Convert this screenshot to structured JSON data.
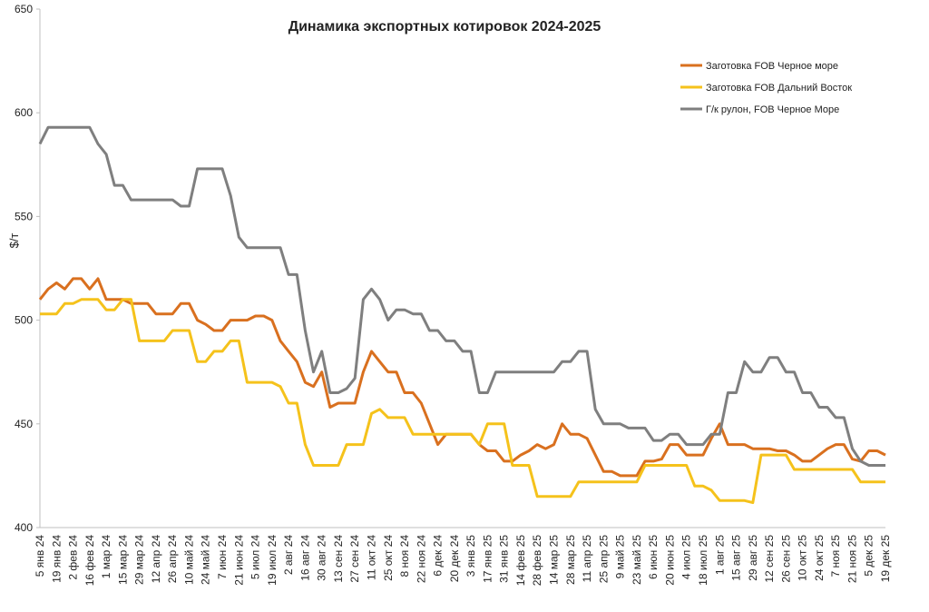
{
  "chart_data": {
    "type": "line",
    "title": "Динамика экспортных котировок 2024-2025",
    "y_label": "$/т",
    "categories": [
      "5 янв 24",
      null,
      "19 янв 24",
      null,
      "2 фев 24",
      null,
      "16 фев 24",
      null,
      "1 мар 24",
      null,
      "15 мар 24",
      null,
      "29 мар 24",
      null,
      "12 апр 24",
      null,
      "26 апр 24",
      null,
      "10 май 24",
      null,
      "24 май 24",
      null,
      "7 июн 24",
      null,
      "21 июн 24",
      null,
      "5 июл 24",
      null,
      "19 июл 24",
      null,
      "2 авг 24",
      null,
      "16 авг 24",
      null,
      "30 авг 24",
      null,
      "13 сен 24",
      null,
      "27 сен 24",
      null,
      "11 окт 24",
      null,
      "25 окт 24",
      null,
      "8 ноя 24",
      null,
      "22 ноя 24",
      null,
      "6 дек 24",
      null,
      "20 дек 24",
      null,
      "3 янв 25",
      null,
      "17 янв 25",
      null,
      "31 янв 25",
      null,
      "14 фев 25",
      null,
      "28 фев 25",
      null,
      "14 мар 25",
      null,
      "28 мар 25",
      null,
      "11 апр 25",
      null,
      "25 апр 25",
      null,
      "9 май 25",
      null,
      "23 май 25",
      null,
      "6 июн 25",
      null,
      "20 июн 25",
      null,
      "4 июл 25",
      null,
      "18 июл 25",
      null,
      "1 авг 25",
      null,
      "15 авг 25",
      null,
      "29 авг 25",
      null,
      "12 сен 25",
      null,
      "26 сен 25",
      null,
      "10 окт 25",
      null,
      "24 окт 25",
      null,
      "7 ноя 25",
      null,
      "21 ноя 25",
      null,
      "5 дек 25",
      null,
      "19 дек 25"
    ],
    "series": [
      {
        "name": "Заготовка FOB Черное море",
        "color": "#d9701f",
        "values": [
          510,
          515,
          518,
          515,
          520,
          520,
          515,
          520,
          510,
          510,
          510,
          508,
          508,
          508,
          503,
          503,
          503,
          508,
          508,
          500,
          498,
          495,
          495,
          500,
          500,
          500,
          502,
          502,
          500,
          490,
          485,
          480,
          470,
          468,
          475,
          458,
          460,
          460,
          460,
          475,
          485,
          480,
          475,
          475,
          465,
          465,
          460,
          450,
          440,
          445,
          445,
          445,
          445,
          440,
          437,
          437,
          432,
          432,
          435,
          437,
          440,
          438,
          440,
          450,
          445,
          445,
          443,
          435,
          427,
          427,
          425,
          425,
          425,
          432,
          432,
          433,
          440,
          440,
          435,
          435,
          435,
          443,
          450,
          440,
          440,
          440,
          438,
          438,
          438,
          437,
          437,
          435,
          432,
          432,
          435,
          438,
          440,
          440,
          433,
          432,
          437,
          437,
          435
        ]
      },
      {
        "name": "Заготовка FOB Дальний Восток",
        "color": "#f5c21b",
        "values": [
          503,
          503,
          503,
          508,
          508,
          510,
          510,
          510,
          505,
          505,
          510,
          510,
          490,
          490,
          490,
          490,
          495,
          495,
          495,
          480,
          480,
          485,
          485,
          490,
          490,
          470,
          470,
          470,
          470,
          468,
          460,
          460,
          440,
          430,
          430,
          430,
          430,
          440,
          440,
          440,
          455,
          457,
          453,
          453,
          453,
          445,
          445,
          445,
          445,
          445,
          445,
          445,
          445,
          440,
          450,
          450,
          450,
          430,
          430,
          430,
          415,
          415,
          415,
          415,
          415,
          422,
          422,
          422,
          422,
          422,
          422,
          422,
          422,
          430,
          430,
          430,
          430,
          430,
          430,
          420,
          420,
          418,
          413,
          413,
          413,
          413,
          412,
          435,
          435,
          435,
          435,
          428,
          428,
          428,
          428,
          428,
          428,
          428,
          428,
          422,
          422,
          422,
          422
        ]
      },
      {
        "name": "Г/к рулон, FOB Черное Море",
        "color": "#7f7f7f",
        "values": [
          585,
          593,
          593,
          593,
          593,
          593,
          593,
          585,
          580,
          565,
          565,
          558,
          558,
          558,
          558,
          558,
          558,
          555,
          555,
          573,
          573,
          573,
          573,
          560,
          540,
          535,
          535,
          535,
          535,
          535,
          522,
          522,
          495,
          475,
          485,
          465,
          465,
          467,
          472,
          510,
          515,
          510,
          500,
          505,
          505,
          503,
          503,
          495,
          495,
          490,
          490,
          485,
          485,
          465,
          465,
          475,
          475,
          475,
          475,
          475,
          475,
          475,
          475,
          480,
          480,
          485,
          485,
          457,
          450,
          450,
          450,
          448,
          448,
          448,
          442,
          442,
          445,
          445,
          440,
          440,
          440,
          445,
          445,
          465,
          465,
          480,
          475,
          475,
          482,
          482,
          475,
          475,
          465,
          465,
          458,
          458,
          453,
          453,
          438,
          432,
          430,
          430,
          430
        ]
      }
    ],
    "ylim": [
      400,
      650
    ],
    "yticks": [
      400,
      450,
      500,
      550,
      600,
      650
    ],
    "grid": false,
    "legend": "top-right"
  }
}
